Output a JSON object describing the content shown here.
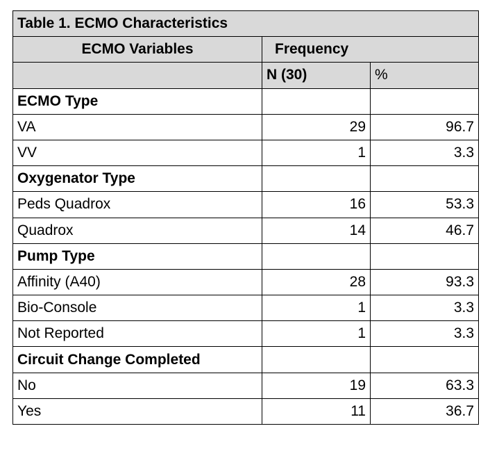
{
  "title": "Table 1. ECMO Characteristics",
  "header": {
    "variables": "ECMO Variables",
    "frequency": "Frequency",
    "n": "N (30)",
    "percent": "%"
  },
  "sections": [
    {
      "title": "ECMO Type",
      "rows": [
        {
          "label": "VA",
          "n": 29,
          "percent": 96.7
        },
        {
          "label": "VV",
          "n": 1,
          "percent": 3.3
        }
      ]
    },
    {
      "title": "Oxygenator Type",
      "rows": [
        {
          "label": "Peds Quadrox",
          "n": 16,
          "percent": 53.3
        },
        {
          "label": "Quadrox",
          "n": 14,
          "percent": 46.7
        }
      ]
    },
    {
      "title": "Pump Type",
      "rows": [
        {
          "label": "Affinity (A40)",
          "n": 28,
          "percent": 93.3
        },
        {
          "label": "Bio-Console",
          "n": 1,
          "percent": 3.3
        },
        {
          "label": "Not Reported",
          "n": 1,
          "percent": 3.3
        }
      ]
    },
    {
      "title": "Circuit Change Completed",
      "rows": [
        {
          "label": "No",
          "n": 19,
          "percent": 63.3
        },
        {
          "label": "Yes",
          "n": 11,
          "percent": 36.7
        }
      ]
    }
  ]
}
